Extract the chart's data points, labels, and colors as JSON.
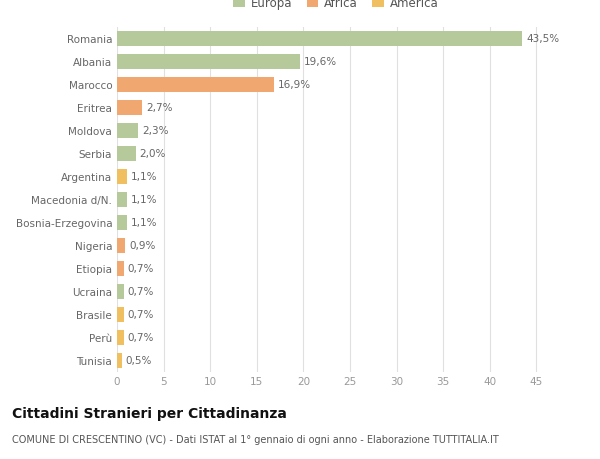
{
  "categories": [
    "Tunisia",
    "Perù",
    "Brasile",
    "Ucraina",
    "Etiopia",
    "Nigeria",
    "Bosnia-Erzegovina",
    "Macedonia d/N.",
    "Argentina",
    "Serbia",
    "Moldova",
    "Eritrea",
    "Marocco",
    "Albania",
    "Romania"
  ],
  "values": [
    0.5,
    0.7,
    0.7,
    0.7,
    0.7,
    0.9,
    1.1,
    1.1,
    1.1,
    2.0,
    2.3,
    2.7,
    16.9,
    19.6,
    43.5
  ],
  "labels": [
    "0,5%",
    "0,7%",
    "0,7%",
    "0,7%",
    "0,7%",
    "0,9%",
    "1,1%",
    "1,1%",
    "1,1%",
    "2,0%",
    "2,3%",
    "2,7%",
    "16,9%",
    "19,6%",
    "43,5%"
  ],
  "colors": [
    "#f0c060",
    "#f0c060",
    "#f0c060",
    "#b5c99a",
    "#f0a870",
    "#f0a870",
    "#b5c99a",
    "#b5c99a",
    "#f0c060",
    "#b5c99a",
    "#b5c99a",
    "#f0a870",
    "#f0a870",
    "#b5c99a",
    "#b5c99a"
  ],
  "legend_labels": [
    "Europa",
    "Africa",
    "America"
  ],
  "legend_colors": [
    "#b5c99a",
    "#f0a870",
    "#f0c060"
  ],
  "title": "Cittadini Stranieri per Cittadinanza",
  "subtitle": "COMUNE DI CRESCENTINO (VC) - Dati ISTAT al 1° gennaio di ogni anno - Elaborazione TUTTITALIA.IT",
  "xlim": [
    0,
    47
  ],
  "xticks": [
    0,
    5,
    10,
    15,
    20,
    25,
    30,
    35,
    40,
    45
  ],
  "bg_color": "#ffffff",
  "grid_color": "#e0e0e0",
  "bar_height": 0.65,
  "label_fontsize": 7.5,
  "title_fontsize": 10,
  "subtitle_fontsize": 7,
  "ytick_fontsize": 7.5,
  "xtick_fontsize": 7.5,
  "legend_fontsize": 8.5
}
